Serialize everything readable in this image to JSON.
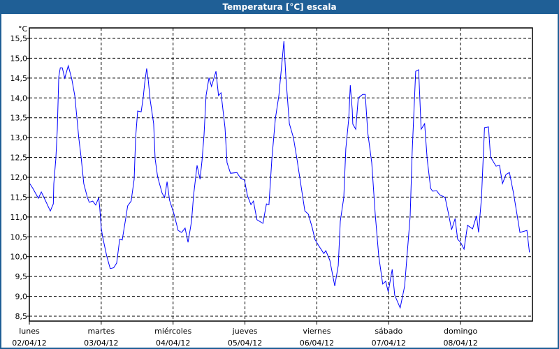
{
  "window": {
    "title": "Temperatura [°C] escala"
  },
  "colors": {
    "titlebar": "#1f5f96",
    "series": "#0000ff",
    "grid": "#000000"
  },
  "chart_data": {
    "type": "line",
    "title": "Temperatura [°C] escala",
    "ylabel": "°C",
    "ylim": [
      8.5,
      15.5
    ],
    "xlim": [
      "2012-04-02 00:00",
      "2012-04-09 00:00"
    ],
    "grid": true,
    "yticks": [
      "15,5",
      "15,0",
      "14,5",
      "14,0",
      "13,5",
      "13,0",
      "12,5",
      "12,0",
      "11,5",
      "11,0",
      "10,5",
      "10,0",
      "9,5",
      "9,0",
      "8,5"
    ],
    "ytick_values": [
      15.5,
      15.0,
      14.5,
      14.0,
      13.5,
      13.0,
      12.5,
      12.0,
      11.5,
      11.0,
      10.5,
      10.0,
      9.5,
      9.0,
      8.5
    ],
    "xticks": [
      {
        "day": "lunes",
        "date": "02/04/12"
      },
      {
        "day": "martes",
        "date": "03/04/12"
      },
      {
        "day": "miércoles",
        "date": "04/04/12"
      },
      {
        "day": "jueves",
        "date": "05/04/12"
      },
      {
        "day": "viernes",
        "date": "06/04/12"
      },
      {
        "day": "sábado",
        "date": "07/04/12"
      },
      {
        "day": "domingo",
        "date": "08/04/12"
      }
    ],
    "series": [
      {
        "points": [
          [
            "2012-04-02 00:10",
            11.84
          ],
          [
            "2012-04-02 01:10",
            11.72
          ],
          [
            "2012-04-02 03:00",
            11.47
          ],
          [
            "2012-04-02 04:00",
            11.63
          ],
          [
            "2012-04-02 04:50",
            11.5
          ],
          [
            "2012-04-02 07:00",
            11.15
          ],
          [
            "2012-04-02 08:00",
            11.33
          ],
          [
            "2012-04-02 08:10",
            11.84
          ],
          [
            "2012-04-02 08:50",
            12.47
          ],
          [
            "2012-04-02 09:20",
            13.2
          ],
          [
            "2012-04-02 09:30",
            13.65
          ],
          [
            "2012-04-02 09:50",
            14.53
          ],
          [
            "2012-04-02 10:20",
            14.76
          ],
          [
            "2012-04-02 11:00",
            14.76
          ],
          [
            "2012-04-02 11:50",
            14.5
          ],
          [
            "2012-04-02 13:00",
            14.81
          ],
          [
            "2012-04-02 14:10",
            14.48
          ],
          [
            "2012-04-02 15:10",
            14.06
          ],
          [
            "2012-04-02 15:50",
            13.53
          ],
          [
            "2012-04-02 16:30",
            13.0
          ],
          [
            "2012-04-02 17:20",
            12.47
          ],
          [
            "2012-04-02 18:10",
            11.84
          ],
          [
            "2012-04-02 19:20",
            11.5
          ],
          [
            "2012-04-02 20:00",
            11.37
          ],
          [
            "2012-04-02 21:10",
            11.4
          ],
          [
            "2012-04-02 22:10",
            11.3
          ],
          [
            "2012-04-02 23:10",
            11.49
          ],
          [
            "2012-04-02 23:30",
            11.24
          ],
          [
            "2012-04-03 00:00",
            10.72
          ],
          [
            "2012-04-03 00:30",
            10.49
          ],
          [
            "2012-04-03 01:50",
            10.02
          ],
          [
            "2012-04-03 03:00",
            9.7
          ],
          [
            "2012-04-03 04:10",
            9.72
          ],
          [
            "2012-04-03 05:10",
            9.84
          ],
          [
            "2012-04-03 06:10",
            10.44
          ],
          [
            "2012-04-03 07:00",
            10.42
          ],
          [
            "2012-04-03 08:10",
            10.96
          ],
          [
            "2012-04-03 08:50",
            11.28
          ],
          [
            "2012-04-03 10:00",
            11.4
          ],
          [
            "2012-04-03 11:00",
            11.95
          ],
          [
            "2012-04-03 11:30",
            13.0
          ],
          [
            "2012-04-03 12:10",
            13.67
          ],
          [
            "2012-04-03 13:20",
            13.65
          ],
          [
            "2012-04-03 14:00",
            14.0
          ],
          [
            "2012-04-03 14:30",
            14.36
          ],
          [
            "2012-04-03 15:10",
            14.74
          ],
          [
            "2012-04-03 15:40",
            14.48
          ],
          [
            "2012-04-03 16:20",
            13.95
          ],
          [
            "2012-04-03 17:30",
            13.35
          ],
          [
            "2012-04-03 18:00",
            12.47
          ],
          [
            "2012-04-03 18:50",
            12.01
          ],
          [
            "2012-04-03 20:20",
            11.6
          ],
          [
            "2012-04-03 21:10",
            11.49
          ],
          [
            "2012-04-03 22:00",
            11.89
          ],
          [
            "2012-04-03 22:50",
            11.42
          ],
          [
            "2012-04-04 00:20",
            11.07
          ],
          [
            "2012-04-04 01:40",
            10.66
          ],
          [
            "2012-04-04 02:50",
            10.61
          ],
          [
            "2012-04-04 04:00",
            10.72
          ],
          [
            "2012-04-04 05:00",
            10.36
          ],
          [
            "2012-04-04 06:10",
            10.89
          ],
          [
            "2012-04-04 06:50",
            11.54
          ],
          [
            "2012-04-04 08:00",
            12.3
          ],
          [
            "2012-04-04 09:00",
            11.95
          ],
          [
            "2012-04-04 09:40",
            12.42
          ],
          [
            "2012-04-04 10:20",
            13.07
          ],
          [
            "2012-04-04 11:00",
            14.06
          ],
          [
            "2012-04-04 12:00",
            14.51
          ],
          [
            "2012-04-04 12:50",
            14.29
          ],
          [
            "2012-04-04 14:20",
            14.67
          ],
          [
            "2012-04-04 15:10",
            14.06
          ],
          [
            "2012-04-04 16:00",
            14.13
          ],
          [
            "2012-04-04 17:20",
            13.25
          ],
          [
            "2012-04-04 18:00",
            12.37
          ],
          [
            "2012-04-04 19:10",
            12.1
          ],
          [
            "2012-04-04 21:20",
            12.12
          ],
          [
            "2012-04-04 22:30",
            11.98
          ],
          [
            "2012-04-04 23:50",
            11.93
          ],
          [
            "2012-04-05 00:50",
            11.54
          ],
          [
            "2012-04-05 02:00",
            11.31
          ],
          [
            "2012-04-05 02:50",
            11.4
          ],
          [
            "2012-04-05 04:00",
            10.93
          ],
          [
            "2012-04-05 06:00",
            10.84
          ],
          [
            "2012-04-05 07:10",
            11.33
          ],
          [
            "2012-04-05 08:00",
            11.31
          ],
          [
            "2012-04-05 09:00",
            12.47
          ],
          [
            "2012-04-05 10:10",
            13.48
          ],
          [
            "2012-04-05 11:20",
            14.06
          ],
          [
            "2012-04-05 12:30",
            15.01
          ],
          [
            "2012-04-05 13:00",
            15.43
          ],
          [
            "2012-04-05 13:40",
            14.53
          ],
          [
            "2012-04-05 14:50",
            13.35
          ],
          [
            "2012-04-05 16:10",
            13.0
          ],
          [
            "2012-04-05 17:20",
            12.47
          ],
          [
            "2012-04-05 18:30",
            11.89
          ],
          [
            "2012-04-05 20:00",
            11.15
          ],
          [
            "2012-04-05 21:10",
            11.07
          ],
          [
            "2012-04-05 22:30",
            10.72
          ],
          [
            "2012-04-05 23:20",
            10.44
          ],
          [
            "2012-04-06 00:20",
            10.31
          ],
          [
            "2012-04-06 02:20",
            10.08
          ],
          [
            "2012-04-06 03:00",
            10.15
          ],
          [
            "2012-04-06 04:20",
            9.91
          ],
          [
            "2012-04-06 06:00",
            9.26
          ],
          [
            "2012-04-06 07:10",
            9.78
          ],
          [
            "2012-04-06 07:50",
            10.89
          ],
          [
            "2012-04-06 09:00",
            11.49
          ],
          [
            "2012-04-06 09:40",
            12.72
          ],
          [
            "2012-04-06 10:40",
            13.48
          ],
          [
            "2012-04-06 11:10",
            14.32
          ],
          [
            "2012-04-06 11:50",
            13.7
          ],
          [
            "2012-04-06 12:00",
            13.34
          ],
          [
            "2012-04-06 13:00",
            13.21
          ],
          [
            "2012-04-06 13:50",
            14.0
          ],
          [
            "2012-04-06 15:20",
            14.09
          ],
          [
            "2012-04-06 16:10",
            14.09
          ],
          [
            "2012-04-06 17:00",
            13.13
          ],
          [
            "2012-04-06 18:20",
            12.37
          ],
          [
            "2012-04-06 19:30",
            11.07
          ],
          [
            "2012-04-06 20:40",
            10.02
          ],
          [
            "2012-04-06 22:00",
            9.31
          ],
          [
            "2012-04-06 23:00",
            9.38
          ],
          [
            "2012-04-06 23:50",
            9.11
          ],
          [
            "2012-04-07 01:10",
            9.68
          ],
          [
            "2012-04-07 02:00",
            9.03
          ],
          [
            "2012-04-07 03:50",
            8.71
          ],
          [
            "2012-04-07 05:20",
            9.26
          ],
          [
            "2012-04-07 07:10",
            11.02
          ],
          [
            "2012-04-07 07:50",
            12.65
          ],
          [
            "2012-04-07 09:00",
            14.67
          ],
          [
            "2012-04-07 10:00",
            14.71
          ],
          [
            "2012-04-07 10:50",
            13.21
          ],
          [
            "2012-04-07 12:00",
            13.35
          ],
          [
            "2012-04-07 12:50",
            12.47
          ],
          [
            "2012-04-07 14:00",
            11.72
          ],
          [
            "2012-04-07 14:40",
            11.65
          ],
          [
            "2012-04-07 16:00",
            11.66
          ],
          [
            "2012-04-07 17:00",
            11.56
          ],
          [
            "2012-04-07 18:50",
            11.49
          ],
          [
            "2012-04-07 20:00",
            11.07
          ],
          [
            "2012-04-07 21:00",
            10.68
          ],
          [
            "2012-04-07 22:10",
            10.96
          ],
          [
            "2012-04-07 23:00",
            10.44
          ],
          [
            "2012-04-08 00:00",
            10.36
          ],
          [
            "2012-04-08 01:10",
            10.19
          ],
          [
            "2012-04-08 02:20",
            10.79
          ],
          [
            "2012-04-08 04:00",
            10.7
          ],
          [
            "2012-04-08 05:20",
            11.03
          ],
          [
            "2012-04-08 06:00",
            10.61
          ],
          [
            "2012-04-08 07:00",
            11.49
          ],
          [
            "2012-04-08 08:00",
            13.25
          ],
          [
            "2012-04-08 09:20",
            13.27
          ],
          [
            "2012-04-08 10:00",
            12.51
          ],
          [
            "2012-04-08 11:50",
            12.28
          ],
          [
            "2012-04-08 13:00",
            12.3
          ],
          [
            "2012-04-08 14:00",
            11.84
          ],
          [
            "2012-04-08 15:10",
            12.07
          ],
          [
            "2012-04-08 16:20",
            12.12
          ],
          [
            "2012-04-08 17:40",
            11.6
          ],
          [
            "2012-04-08 19:50",
            10.61
          ],
          [
            "2012-04-08 22:10",
            10.66
          ],
          [
            "2012-04-08 23:00",
            10.11
          ]
        ]
      }
    ]
  }
}
